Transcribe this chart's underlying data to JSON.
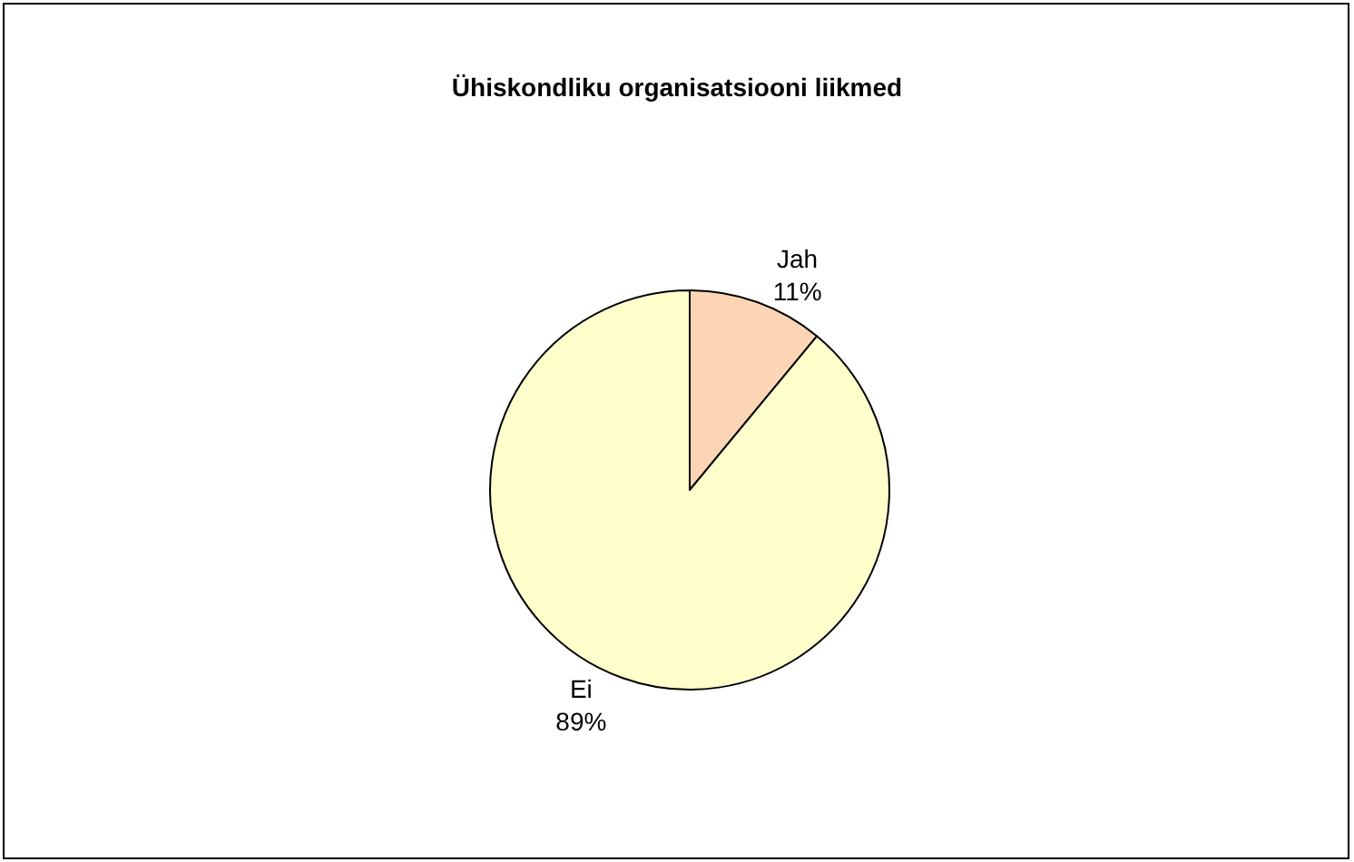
{
  "chart_data": {
    "type": "pie",
    "title": "Ühiskondliku organisatsiooni liikmed",
    "categories": [
      "Jah",
      "Ei"
    ],
    "values": [
      11,
      89
    ],
    "colors": [
      "#fcd5b4",
      "#ffffcc"
    ],
    "value_labels": [
      "11%",
      "89%"
    ],
    "legend": false
  }
}
